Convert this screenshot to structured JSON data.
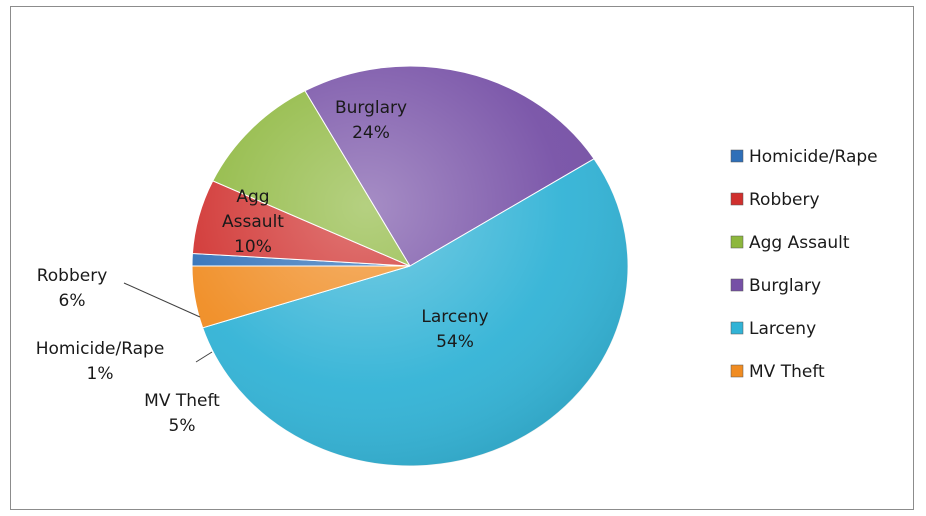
{
  "chart_data": {
    "type": "pie",
    "title": "",
    "legend_position": "right",
    "slices": [
      {
        "name": "Homicide/Rape",
        "value": 1,
        "label": "1%",
        "color": "#2e6fb8"
      },
      {
        "name": "Robbery",
        "value": 6,
        "label": "6%",
        "color": "#d0302e"
      },
      {
        "name": "Agg Assault",
        "value": 10,
        "label": "10%",
        "color": "#8db73d"
      },
      {
        "name": "Burglary",
        "value": 24,
        "label": "24%",
        "color": "#7650a6"
      },
      {
        "name": "Larceny",
        "value": 54,
        "label": "54%",
        "color": "#32b3d6"
      },
      {
        "name": "MV Theft",
        "value": 5,
        "label": "5%",
        "color": "#f08c22"
      }
    ]
  }
}
